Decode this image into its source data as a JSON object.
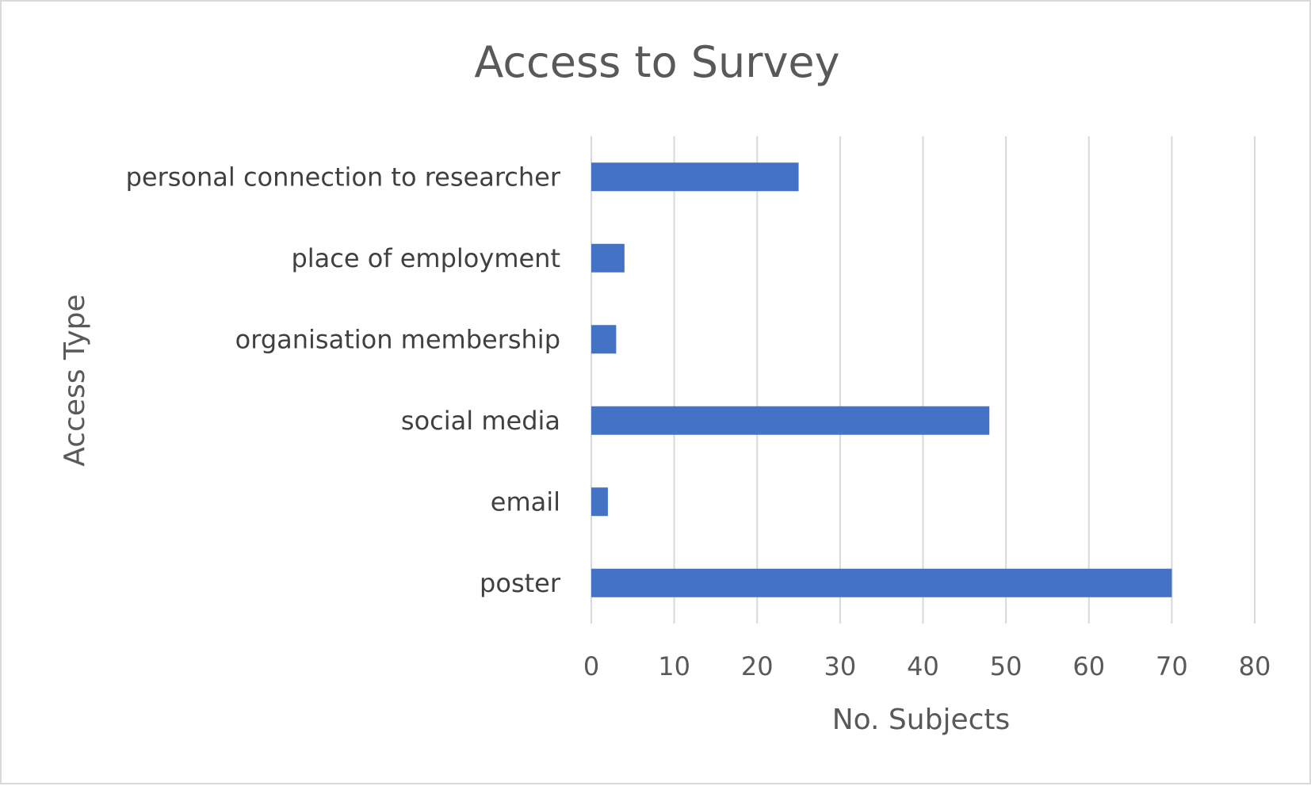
{
  "chart_data": {
    "type": "bar",
    "orientation": "horizontal",
    "title": "Access to Survey",
    "xlabel": "No. Subjects",
    "ylabel": "Access Type",
    "categories": [
      "personal connection to researcher",
      "place of employment",
      "organisation membership",
      "social media",
      "email",
      "poster"
    ],
    "values": [
      25,
      4,
      3,
      48,
      2,
      70
    ],
    "xlim": [
      0,
      80
    ],
    "xticks": [
      "0",
      "10",
      "20",
      "30",
      "40",
      "50",
      "60",
      "70",
      "80"
    ],
    "grid": true,
    "legend": "none",
    "colors": {
      "bar": "#4472C4",
      "grid": "#d9d9d9",
      "text": "#595959"
    }
  }
}
